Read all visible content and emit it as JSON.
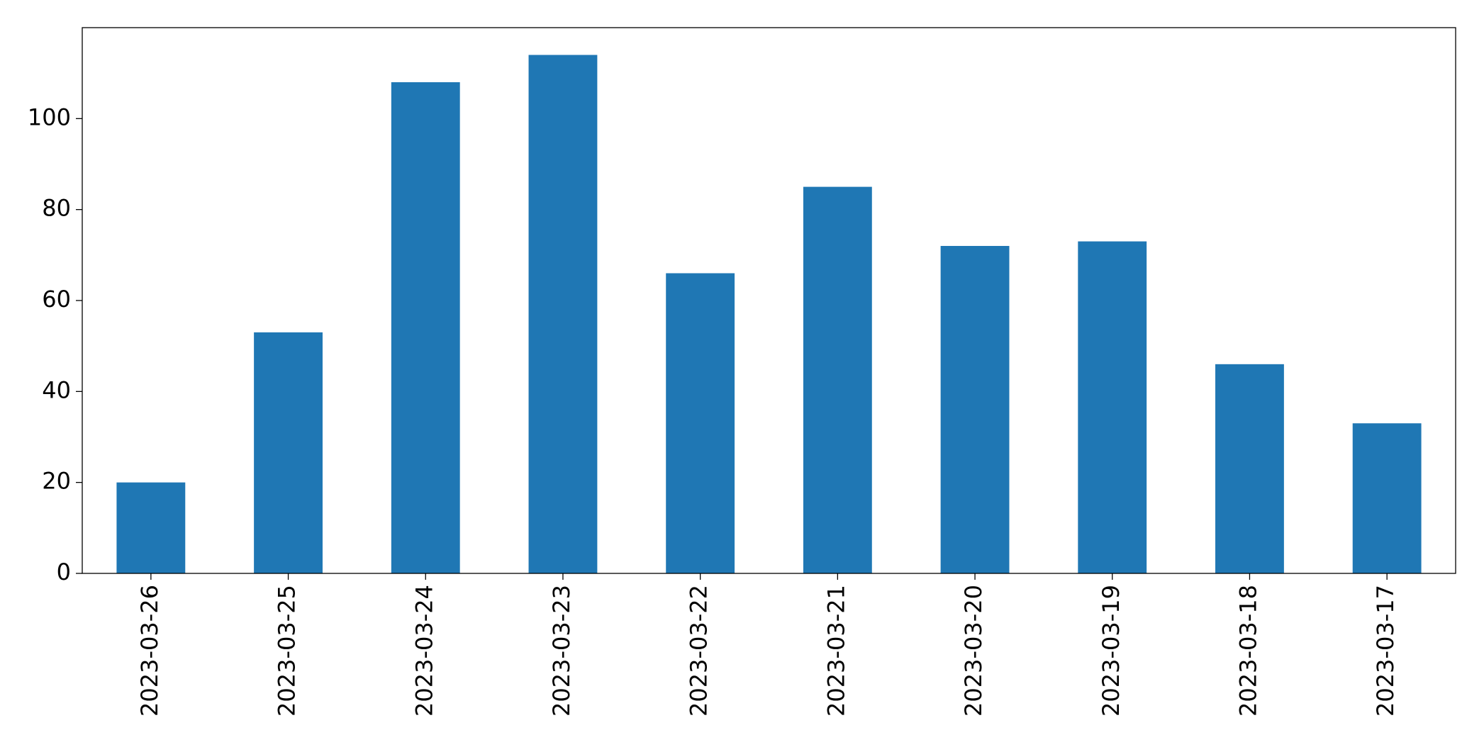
{
  "chart_data": {
    "type": "bar",
    "categories": [
      "2023-03-26",
      "2023-03-25",
      "2023-03-24",
      "2023-03-23",
      "2023-03-22",
      "2023-03-21",
      "2023-03-20",
      "2023-03-19",
      "2023-03-18",
      "2023-03-17"
    ],
    "values": [
      20,
      53,
      108,
      114,
      66,
      85,
      72,
      73,
      46,
      33
    ],
    "color": "#1f77b4",
    "ylim": [
      0,
      120
    ],
    "yticks": [
      0,
      20,
      40,
      60,
      80,
      100
    ],
    "grid": false
  }
}
